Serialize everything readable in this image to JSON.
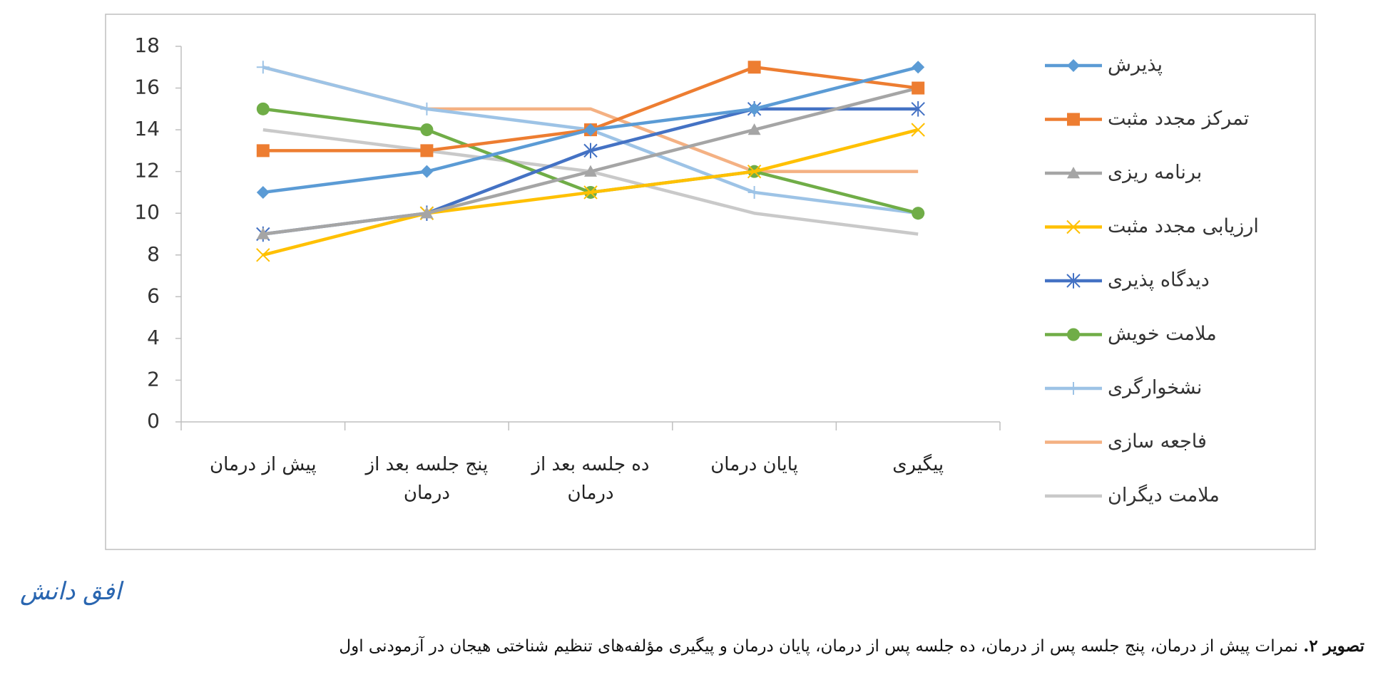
{
  "chart_data": {
    "type": "line",
    "categories": [
      "پیش از درمان",
      "پنج جلسه بعد از درمان",
      "ده جلسه بعد از درمان",
      "پایان درمان",
      "پیگیری"
    ],
    "ylim": [
      0,
      18
    ],
    "yticks": [
      0,
      2,
      4,
      6,
      8,
      10,
      12,
      14,
      16,
      18
    ],
    "series": [
      {
        "name": "پذیرش",
        "color": "#5b9bd5",
        "marker": "diamond",
        "values": [
          11,
          12,
          14,
          15,
          17
        ]
      },
      {
        "name": "تمرکز مجدد مثبت",
        "color": "#ed7d31",
        "marker": "square",
        "values": [
          13,
          13,
          14,
          17,
          16
        ]
      },
      {
        "name": "برنامه ریزی",
        "color": "#a5a5a5",
        "marker": "triangle",
        "values": [
          9,
          10,
          12,
          14,
          16
        ]
      },
      {
        "name": "ارزیابی مجدد مثبت",
        "color": "#ffc000",
        "marker": "x",
        "values": [
          8,
          10,
          11,
          12,
          14
        ]
      },
      {
        "name": "دیدگاه پذیری",
        "color": "#4472c4",
        "marker": "star",
        "values": [
          9,
          10,
          13,
          15,
          15
        ]
      },
      {
        "name": "ملامت خویش",
        "color": "#70ad47",
        "marker": "circle",
        "values": [
          15,
          14,
          11,
          12,
          10
        ]
      },
      {
        "name": "نشخوارگری",
        "color": "#9dc3e6",
        "marker": "plus",
        "values": [
          17,
          15,
          14,
          11,
          10
        ]
      },
      {
        "name": "فاجعه سازی",
        "color": "#f4b183",
        "marker": "none",
        "values": [
          17,
          15,
          15,
          12,
          12
        ]
      },
      {
        "name": "ملامت دیگران",
        "color": "#c9c9c9",
        "marker": "none",
        "values": [
          14,
          13,
          12,
          10,
          9
        ]
      }
    ]
  },
  "logo": "افق دانش",
  "caption": {
    "label": "تصویر ۲.",
    "text": "نمرات پیش از درمان، پنج جلسه پس از درمان، ده جلسه پس از درمان، پایان درمان و پیگیری مؤلفه‌های تنظیم شناختی هیجان در آزمودنی اول"
  }
}
